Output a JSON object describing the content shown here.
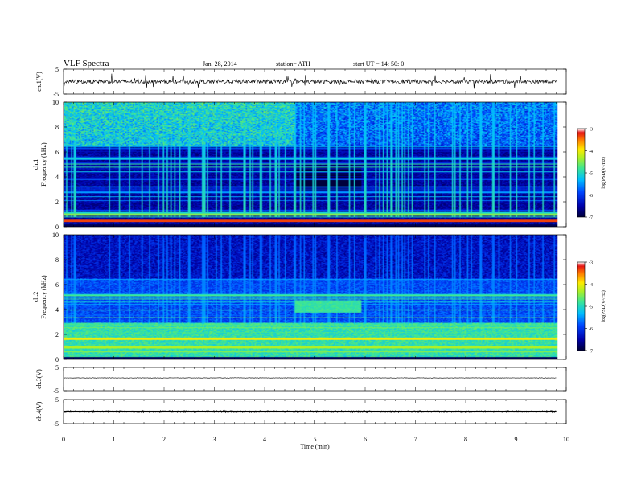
{
  "header": {
    "title": "VLF  Spectra",
    "date": "Jan. 28, 2014",
    "station": "station= ATH",
    "start": "start  UT =   14: 50: 0"
  },
  "chart_data": [
    {
      "type": "line",
      "panel": "ch1-waveform",
      "ylabel": "ch.1(V)",
      "ylim": [
        -5,
        5
      ],
      "yticks": [
        "5",
        "-5"
      ],
      "xlim": [
        0,
        10
      ],
      "signal_range_min": [
        0,
        9.8
      ],
      "baseline_V": 0,
      "fluctuation_V": 0.8,
      "spikes_V": 2.5
    },
    {
      "type": "heatmap",
      "panel": "ch1-spectrogram",
      "ylabel": "ch.1\nFrequency  (kHz)",
      "ylim": [
        0,
        10
      ],
      "yticks": [
        "0",
        "2",
        "4",
        "6",
        "8",
        "10"
      ],
      "xlim": [
        0,
        10
      ],
      "data_range_min": [
        0,
        9.8
      ],
      "colorbar": {
        "label": "log(PSD(V²/Hz)",
        "range": [
          -7,
          -3
        ],
        "ticks": [
          "-3",
          "-4",
          "-5",
          "-6",
          "-7"
        ]
      },
      "spectral_features": [
        {
          "band_kHz": [
            6.5,
            10
          ],
          "t_min": [
            0,
            9.8
          ],
          "logPSD": -5.4,
          "note": "broadband sferic activity, stronger before 4.6 min"
        },
        {
          "band_kHz": [
            3.0,
            5.0
          ],
          "t_min": [
            4.6,
            5.9
          ],
          "logPSD": -7,
          "note": "quiet gap"
        },
        {
          "line_kHz": 0.5,
          "logPSD": -3.3
        },
        {
          "line_kHz": 1.0,
          "logPSD": -4.5
        }
      ]
    },
    {
      "type": "heatmap",
      "panel": "ch2-spectrogram",
      "ylabel": "ch.2\nFrequency  (kHz)",
      "ylim": [
        0,
        10
      ],
      "yticks": [
        "0",
        "2",
        "4",
        "6",
        "8",
        "10"
      ],
      "xlim": [
        0,
        10
      ],
      "data_range_min": [
        0,
        9.8
      ],
      "colorbar": {
        "label": "log(PSD(V²/Hz)",
        "range": [
          -7,
          -3
        ],
        "ticks": [
          "-3",
          "-4",
          "-5",
          "-6",
          "-7"
        ]
      },
      "spectral_features": [
        {
          "band_kHz": [
            6.5,
            10
          ],
          "t_min": [
            0,
            9.8
          ],
          "logPSD": -6.6,
          "note": "weak broadband, mostly dark"
        },
        {
          "band_kHz": [
            3.8,
            4.8
          ],
          "t_min": [
            4.6,
            5.9
          ],
          "logPSD": -5.0,
          "note": "enhanced band"
        },
        {
          "band_kHz": [
            0.3,
            3.0
          ],
          "t_min": [
            0,
            9.8
          ],
          "logPSD": -4.6
        }
      ]
    },
    {
      "type": "line",
      "panel": "ch3-waveform",
      "ylabel": "ch.3(V)",
      "ylim": [
        -5,
        5
      ],
      "yticks": [
        "5",
        "-5"
      ],
      "xlim": [
        0,
        10
      ],
      "signal_range_min": [
        0,
        9.8
      ],
      "baseline_V": 0.5,
      "fluctuation_V": 0.1
    },
    {
      "type": "line",
      "panel": "ch4-waveform",
      "ylabel": "ch.4(V)",
      "ylim": [
        -5,
        5
      ],
      "yticks": [
        "5",
        "-5"
      ],
      "xlim": [
        0,
        10
      ],
      "signal_range_min": [
        0,
        9.8
      ],
      "baseline_V": 0,
      "fluctuation_V": 0.3
    }
  ],
  "xaxis": {
    "label": "Time  (min)",
    "ticks": [
      "0",
      "1",
      "2",
      "3",
      "4",
      "5",
      "6",
      "7",
      "8",
      "9",
      "10"
    ]
  }
}
